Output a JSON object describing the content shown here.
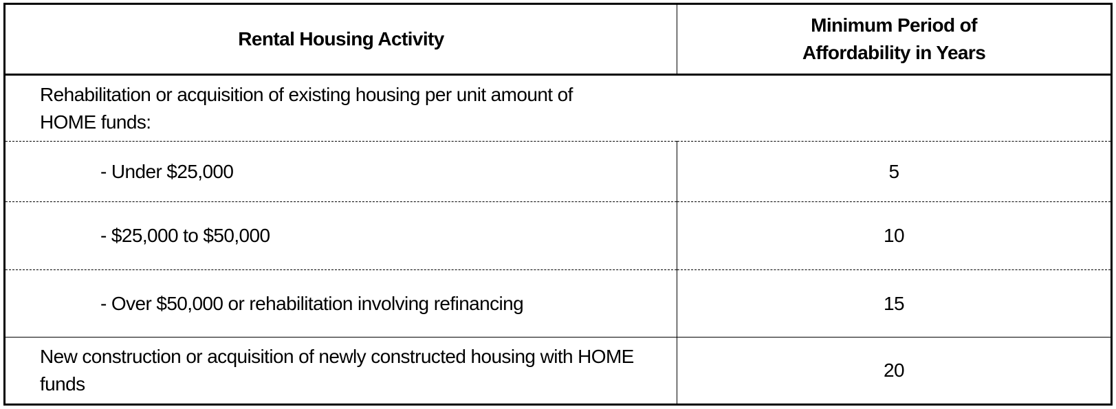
{
  "table": {
    "header": [
      "Rental Housing Activity",
      "Minimum Period of Affordability in Years"
    ],
    "rows": [
      {
        "activity": "Rehabilitation or acquisition of existing housing per unit amount of HOME funds:"
      },
      {
        "activity": "- Under $25,000",
        "years": 5
      },
      {
        "activity": "- $25,000 to $50,000",
        "years": 10
      },
      {
        "activity": "- Over $50,000 or rehabilitation involving refinancing",
        "years": 15
      },
      {
        "activity": "New construction or acquisition of newly constructed housing with HOME funds",
        "years": 20
      }
    ]
  }
}
